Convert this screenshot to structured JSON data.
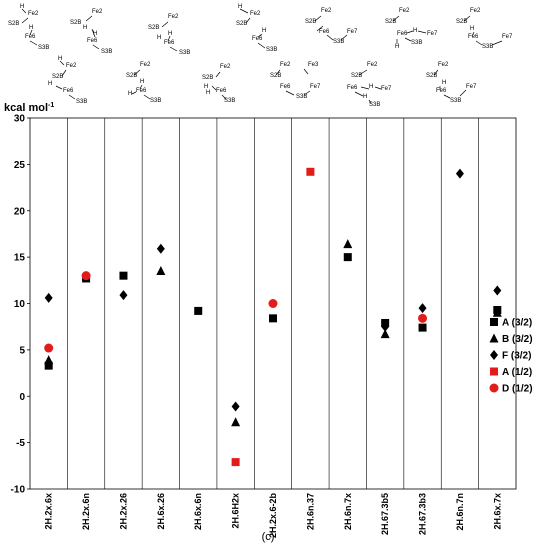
{
  "chart_data": {
    "type": "scatter",
    "title": "",
    "ylabel": "kcal mol",
    "ylabel_sup": "-1",
    "ylim": [
      -10,
      30
    ],
    "yticks": [
      30,
      25,
      20,
      15,
      10,
      5,
      0,
      -5,
      -10
    ],
    "grid": "vertical",
    "legend_position": "right",
    "panel_label": "(c)",
    "categories": [
      "2H.2x.6x",
      "2H.2x.6n",
      "2H.2x.26",
      "2H.6x.26",
      "2H.6x.6n",
      "2H.6H2x",
      "2H.2x.6-2b",
      "2H.6n.37",
      "2H.6n.7x",
      "2H.67.3b5",
      "2H.67.3b3",
      "2H.6n.7n",
      "2H.6x.7x"
    ],
    "series": [
      {
        "name": "A (3/2)",
        "marker": "square",
        "color": "#000000",
        "values": [
          3.3,
          12.7,
          13.0,
          null,
          9.2,
          null,
          8.4,
          null,
          15.0,
          7.9,
          7.4,
          null,
          9.3
        ]
      },
      {
        "name": "B (3/2)",
        "marker": "triangle",
        "color": "#000000",
        "values": [
          3.9,
          null,
          null,
          13.5,
          null,
          -2.8,
          null,
          null,
          16.4,
          6.7,
          null,
          null,
          9.0
        ]
      },
      {
        "name": "F (3/2)",
        "marker": "diamond",
        "color": "#000000",
        "values": [
          10.6,
          null,
          10.9,
          15.9,
          null,
          -1.1,
          null,
          null,
          null,
          7.5,
          9.5,
          24.0,
          11.4
        ]
      },
      {
        "name": "A (1/2)",
        "marker": "square",
        "color": "#e21b1b",
        "values": [
          null,
          null,
          null,
          null,
          null,
          -7.1,
          null,
          24.2,
          null,
          null,
          null,
          null,
          null
        ]
      },
      {
        "name": "D (1/2)",
        "marker": "circle",
        "color": "#e21b1b",
        "values": [
          5.2,
          13.0,
          null,
          null,
          null,
          null,
          10.0,
          null,
          null,
          null,
          8.4,
          null,
          null
        ]
      }
    ]
  },
  "structure_labels": {
    "fe2": "Fe2",
    "fe3": "Fe3",
    "fe6": "Fe6",
    "fe7": "Fe7",
    "s2b": "S2B",
    "s3b": "S3B",
    "h": "H"
  }
}
